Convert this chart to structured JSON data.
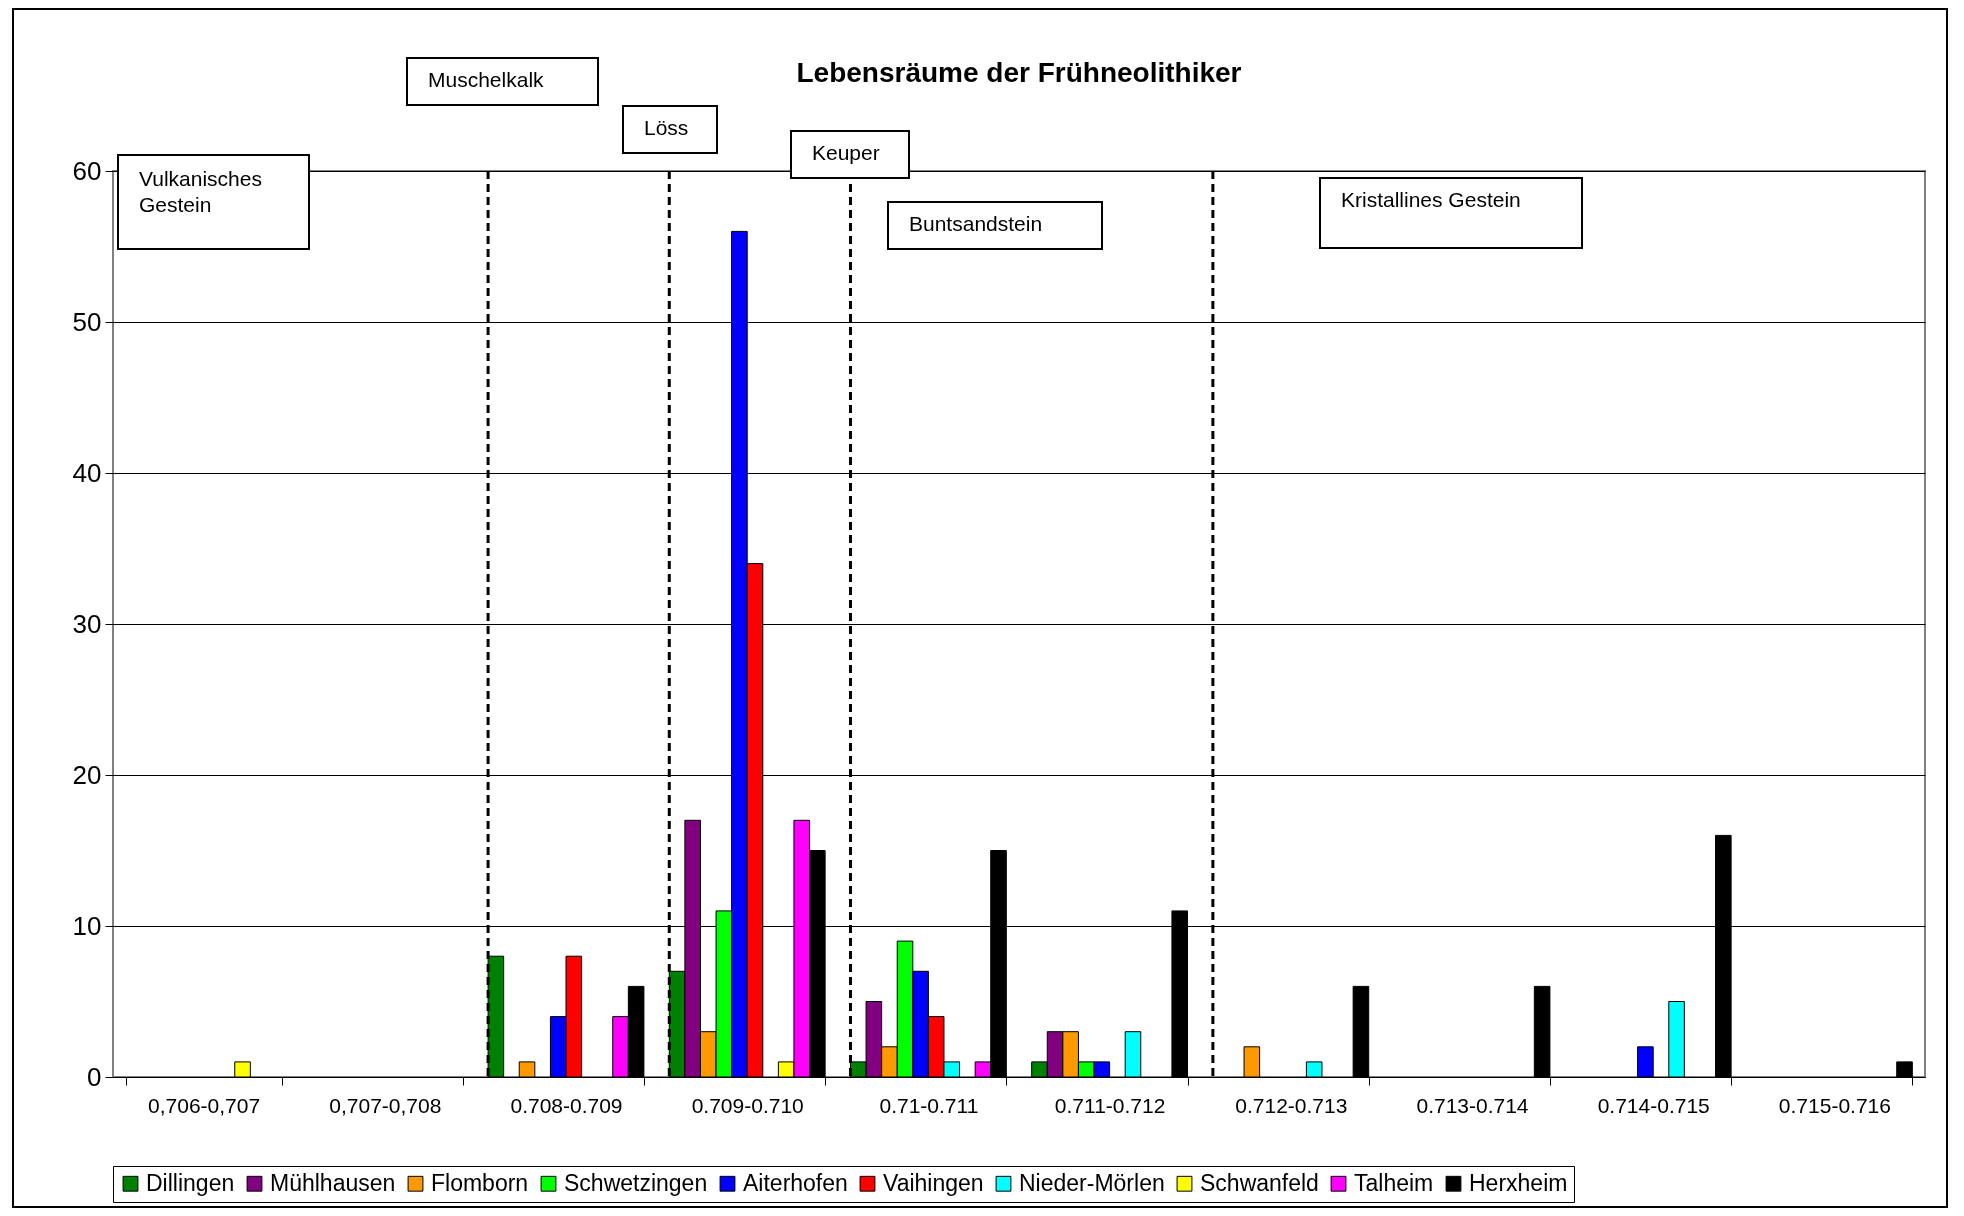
{
  "chart_data": {
    "type": "bar",
    "title": "Lebensräume der Frühneolithiker",
    "categories": [
      "0,706-0,707",
      "0,707-0,708",
      "0.708-0.709",
      "0.709-0.710",
      "0.71-0.711",
      "0.711-0.712",
      "0.712-0.713",
      "0.713-0.714",
      "0.714-0.715",
      "0.715-0.716"
    ],
    "series": [
      {
        "name": "Dillingen",
        "color": "#008000",
        "values": [
          null,
          null,
          8,
          7,
          1,
          1,
          null,
          null,
          null,
          null
        ]
      },
      {
        "name": "Mühlhausen",
        "color": "#800080",
        "values": [
          null,
          null,
          null,
          17,
          5,
          3,
          null,
          null,
          null,
          null
        ]
      },
      {
        "name": "Flomborn",
        "color": "#ff9900",
        "values": [
          null,
          null,
          1,
          3,
          2,
          3,
          2,
          null,
          null,
          null
        ]
      },
      {
        "name": "Schwetzingen",
        "color": "#00ff00",
        "values": [
          null,
          null,
          null,
          11,
          9,
          1,
          null,
          null,
          null,
          null
        ]
      },
      {
        "name": "Aiterhofen",
        "color": "#0000ff",
        "values": [
          null,
          null,
          4,
          56,
          7,
          1,
          null,
          null,
          2,
          null
        ]
      },
      {
        "name": "Vaihingen",
        "color": "#ff0000",
        "values": [
          null,
          null,
          8,
          34,
          4,
          null,
          null,
          null,
          null,
          null
        ]
      },
      {
        "name": "Nieder-Mörlen",
        "color": "#00ffff",
        "values": [
          null,
          null,
          null,
          null,
          1,
          3,
          1,
          null,
          5,
          null
        ]
      },
      {
        "name": "Schwanfeld",
        "color": "#ffff00",
        "values": [
          1,
          null,
          null,
          1,
          null,
          null,
          null,
          null,
          null,
          null
        ]
      },
      {
        "name": "Talheim",
        "color": "#ff00ff",
        "values": [
          null,
          null,
          4,
          17,
          1,
          null,
          null,
          null,
          null,
          null
        ]
      },
      {
        "name": "Herxheim",
        "color": "#000000",
        "values": [
          null,
          null,
          6,
          15,
          15,
          11,
          6,
          6,
          16,
          1
        ]
      }
    ],
    "ylim": [
      0,
      60
    ],
    "yticks": [
      0,
      10,
      20,
      30,
      40,
      50,
      60
    ],
    "grid": "y",
    "legend": "bottom",
    "ref_lines": [
      {
        "axis": "x",
        "value": "0.708-0.709",
        "line_style": "dashed",
        "color": "#000000"
      },
      {
        "axis": "x",
        "value": "0.709-0.710",
        "line_style": "dashed",
        "color": "#000000"
      },
      {
        "axis": "x",
        "value": "0.71-0.711",
        "line_style": "dashed",
        "color": "#000000"
      },
      {
        "axis": "x",
        "value": "0.712-0.713",
        "line_style": "dashed",
        "color": "#000000"
      }
    ],
    "annotations": [
      "Vulkanisches Gestein",
      "Muschelkalk",
      "Löss",
      "Keuper",
      "Buntsandstein",
      "Kristallines Gestein"
    ]
  }
}
